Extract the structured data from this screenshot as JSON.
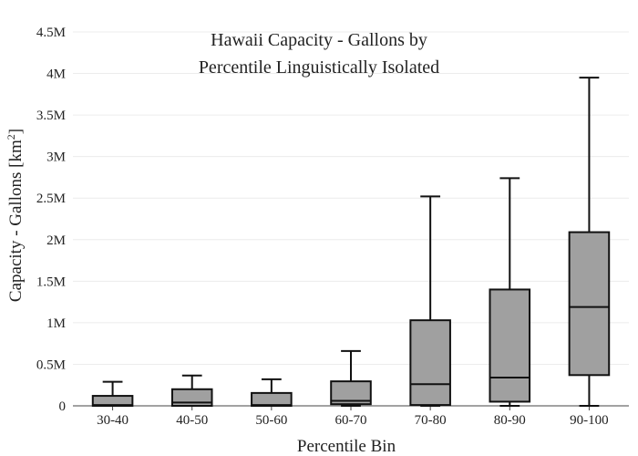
{
  "chart_data": {
    "type": "box",
    "title_lines": [
      "Hawaii Capacity - Gallons by",
      "Percentile Linguistically Isolated"
    ],
    "xlabel": "Percentile Bin",
    "ylabel_main": "Capacity - Gallons  [km",
    "ylabel_sup": "2",
    "ylabel_end": "]",
    "ylim": [
      0,
      4500000
    ],
    "yticks": [
      0,
      500000,
      1000000,
      1500000,
      2000000,
      2500000,
      3000000,
      3500000,
      4000000,
      4500000
    ],
    "ytick_labels": [
      "0",
      "0.5M",
      "1M",
      "1.5M",
      "2M",
      "2.5M",
      "3M",
      "3.5M",
      "4M",
      "4.5M"
    ],
    "grid": true,
    "box_color": "#a0a0a0",
    "categories": [
      "30-40",
      "40-50",
      "50-60",
      "60-70",
      "70-80",
      "80-90",
      "90-100"
    ],
    "boxes": [
      {
        "category": "30-40",
        "min": 0,
        "q1": 0,
        "median": 10000,
        "q3": 120000,
        "max": 290000
      },
      {
        "category": "40-50",
        "min": 0,
        "q1": 0,
        "median": 40000,
        "q3": 200000,
        "max": 365000
      },
      {
        "category": "50-60",
        "min": 0,
        "q1": 0,
        "median": 10000,
        "q3": 155000,
        "max": 320000
      },
      {
        "category": "60-70",
        "min": 0,
        "q1": 20000,
        "median": 60000,
        "q3": 295000,
        "max": 660000
      },
      {
        "category": "70-80",
        "min": 0,
        "q1": 10000,
        "median": 260000,
        "q3": 1030000,
        "max": 2520000
      },
      {
        "category": "80-90",
        "min": 0,
        "q1": 50000,
        "median": 340000,
        "q3": 1400000,
        "max": 2740000
      },
      {
        "category": "90-100",
        "min": 0,
        "q1": 370000,
        "median": 1190000,
        "q3": 2090000,
        "max": 3950000
      }
    ]
  }
}
